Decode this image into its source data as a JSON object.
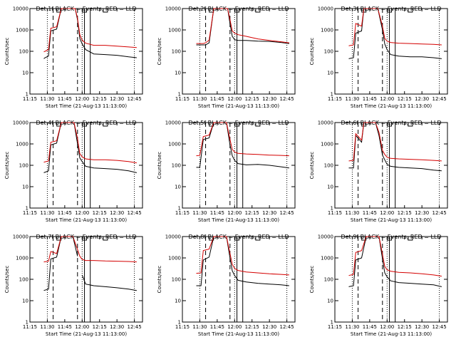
{
  "chart_data": {
    "type": "line",
    "layout": "3x3 grid of panels",
    "yscale": "log",
    "ylim": [
      1,
      10000
    ],
    "y_ticks": [
      "1",
      "10",
      "100",
      "1000",
      "10000"
    ],
    "ylabel": "Counts/sec",
    "x_ticks": [
      "11:15",
      "11:30",
      "11:45",
      "12:00",
      "12:15",
      "12:30",
      "12:45"
    ],
    "xlabel": "Start Time (21-Aug-13 11:13:00)",
    "series_colors": {
      "events": "#000000",
      "lld": "#d40000"
    },
    "markers": {
      "dotted_lines": [
        "11:30",
        "12:00",
        "12:45"
      ],
      "dashed_lines": [
        "11:35",
        "11:56"
      ],
      "solid_lines": [
        "12:02",
        "12:07"
      ],
      "top_marks": [
        "11:40",
        "12:02",
        "12:20"
      ]
    },
    "panels": [
      {
        "title": "Det 1f BLACK = Events, RED = LLD",
        "black_x": [
          "11:15",
          "11:27",
          "11:28",
          "11:31",
          "11:33",
          "11:38",
          "11:42",
          "11:50",
          "11:52",
          "11:54",
          "11:56",
          "11:58",
          "12:00",
          "12:03",
          "12:10",
          "12:20",
          "12:30",
          "12:40",
          "12:47"
        ],
        "black": [
          null,
          45,
          50,
          60,
          900,
          1100,
          10000,
          10000,
          10000,
          10000,
          3000,
          400,
          220,
          120,
          75,
          70,
          65,
          55,
          50
        ],
        "red_x": [
          "11:15",
          "11:27",
          "11:28",
          "11:31",
          "11:33",
          "11:38",
          "11:42",
          "11:50",
          "11:52",
          "11:54",
          "11:56",
          "11:58",
          "12:00",
          "12:03",
          "12:10",
          "12:20",
          "12:30",
          "12:40",
          "12:47"
        ],
        "red": [
          null,
          95,
          100,
          120,
          1200,
          1400,
          10000,
          10000,
          10000,
          10000,
          3500,
          600,
          330,
          240,
          190,
          190,
          175,
          160,
          150
        ]
      },
      {
        "title": "Det 2f BLACK = Events, RED = LLD",
        "black_x": [
          "11:15",
          "11:27",
          "11:29",
          "11:33",
          "11:35",
          "11:38",
          "11:42",
          "11:50",
          "11:52",
          "11:54",
          "11:56",
          "11:58",
          "12:00",
          "12:03",
          "12:10",
          "12:20",
          "12:30",
          "12:40",
          "12:47"
        ],
        "black": [
          null,
          200,
          200,
          200,
          200,
          250,
          10000,
          10000,
          10000,
          10000,
          2000,
          500,
          350,
          320,
          320,
          300,
          290,
          260,
          230
        ],
        "red_x": [
          "11:15",
          "11:27",
          "11:29",
          "11:33",
          "11:35",
          "11:38",
          "11:42",
          "11:50",
          "11:52",
          "11:54",
          "11:56",
          "11:58",
          "12:00",
          "12:03",
          "12:10",
          "12:20",
          "12:30",
          "12:40",
          "12:47"
        ],
        "red": [
          null,
          230,
          230,
          230,
          250,
          330,
          10000,
          10000,
          10000,
          10000,
          3000,
          900,
          700,
          600,
          500,
          380,
          320,
          280,
          250
        ]
      },
      {
        "title": "Det 3f BLACK = Events, RED = LLD",
        "black_x": [
          "11:15",
          "11:27",
          "11:31",
          "11:33",
          "11:38",
          "11:40",
          "11:45",
          "11:50",
          "11:52",
          "11:56",
          "11:58",
          "12:00",
          "12:03",
          "12:10",
          "12:20",
          "12:30",
          "12:40",
          "12:47"
        ],
        "black": [
          null,
          45,
          50,
          700,
          900,
          10000,
          10000,
          10000,
          10000,
          1000,
          220,
          120,
          70,
          60,
          55,
          55,
          50,
          45
        ],
        "red_x": [
          "11:15",
          "11:27",
          "11:31",
          "11:33",
          "11:38",
          "11:40",
          "11:45",
          "11:50",
          "11:52",
          "11:56",
          "11:58",
          "12:00",
          "12:03",
          "12:10",
          "12:20",
          "12:30",
          "12:40",
          "12:47"
        ],
        "red": [
          null,
          180,
          200,
          2000,
          1500,
          10000,
          10000,
          10000,
          10000,
          1500,
          400,
          300,
          260,
          240,
          230,
          220,
          210,
          200
        ]
      },
      {
        "title": "Det 4f BLACK = Events, RED = LLD",
        "black_x": [
          "11:15",
          "11:27",
          "11:31",
          "11:33",
          "11:38",
          "11:42",
          "11:50",
          "11:53",
          "11:56",
          "11:58",
          "12:00",
          "12:03",
          "12:10",
          "12:20",
          "12:30",
          "12:40",
          "12:47"
        ],
        "black": [
          null,
          45,
          55,
          900,
          1100,
          10000,
          10000,
          10000,
          1000,
          220,
          150,
          90,
          75,
          70,
          65,
          55,
          45
        ],
        "red_x": [
          "11:15",
          "11:27",
          "11:31",
          "11:33",
          "11:38",
          "11:42",
          "11:50",
          "11:53",
          "11:56",
          "11:58",
          "12:00",
          "12:03",
          "12:10",
          "12:20",
          "12:30",
          "12:40",
          "12:47"
        ],
        "red": [
          null,
          140,
          160,
          1200,
          1400,
          10000,
          10000,
          10000,
          1800,
          350,
          250,
          200,
          180,
          180,
          170,
          150,
          130
        ]
      },
      {
        "title": "Det 5f BLACK = Events, RED = LLD",
        "black_x": [
          "11:15",
          "11:27",
          "11:30",
          "11:33",
          "11:38",
          "11:42",
          "11:50",
          "11:53",
          "11:56",
          "11:58",
          "12:00",
          "12:03",
          "12:10",
          "12:20",
          "12:30",
          "12:40",
          "12:47"
        ],
        "black": [
          null,
          80,
          80,
          1600,
          1900,
          10000,
          10000,
          10000,
          900,
          280,
          170,
          120,
          105,
          110,
          100,
          85,
          75
        ],
        "red_x": [
          "11:15",
          "11:27",
          "11:30",
          "11:33",
          "11:38",
          "11:42",
          "11:50",
          "11:53",
          "11:56",
          "11:58",
          "12:00",
          "12:03",
          "12:10",
          "12:20",
          "12:30",
          "12:40",
          "12:47"
        ],
        "red": [
          null,
          280,
          290,
          2200,
          2600,
          10000,
          10000,
          10000,
          1600,
          550,
          420,
          360,
          340,
          320,
          300,
          290,
          280
        ]
      },
      {
        "title": "Det 6f BLACK = Events, RED = LLD",
        "black_x": [
          "11:15",
          "11:27",
          "11:31",
          "11:33",
          "11:38",
          "11:40",
          "11:48",
          "11:50",
          "11:53",
          "11:56",
          "11:58",
          "12:00",
          "12:03",
          "12:10",
          "12:20",
          "12:30",
          "12:40",
          "12:47"
        ],
        "black": [
          null,
          75,
          75,
          2500,
          1200,
          10000,
          10000,
          10000,
          2500,
          300,
          180,
          110,
          90,
          80,
          75,
          70,
          60,
          55
        ],
        "red_x": [
          "11:15",
          "11:27",
          "11:31",
          "11:33",
          "11:38",
          "11:40",
          "11:48",
          "11:50",
          "11:53",
          "11:56",
          "11:58",
          "12:00",
          "12:03",
          "12:10",
          "12:20",
          "12:30",
          "12:40",
          "12:47"
        ],
        "red": [
          null,
          160,
          170,
          3000,
          1500,
          10000,
          10000,
          10000,
          3500,
          500,
          320,
          240,
          210,
          200,
          190,
          180,
          170,
          160
        ]
      },
      {
        "title": "Det 7f BLACK = Events, RED = LLD",
        "black_x": [
          "11:15",
          "11:27",
          "11:31",
          "11:33",
          "11:38",
          "11:42",
          "11:50",
          "11:52",
          "11:56",
          "11:58",
          "12:00",
          "12:03",
          "12:10",
          "12:20",
          "12:30",
          "12:40",
          "12:47"
        ],
        "black": [
          null,
          30,
          35,
          900,
          1100,
          10000,
          10000,
          10000,
          1200,
          null,
          160,
          60,
          50,
          45,
          40,
          35,
          30
        ],
        "red_x": [
          "11:15",
          "11:27",
          "11:31",
          "11:33",
          "11:38",
          "11:42",
          "11:50",
          "11:52",
          "11:56",
          "11:58",
          "12:00",
          "12:03",
          "12:10",
          "12:20",
          "12:30",
          "12:40",
          "12:47"
        ],
        "red": [
          null,
          650,
          700,
          2000,
          1600,
          10000,
          10000,
          10000,
          2500,
          1200,
          850,
          760,
          760,
          720,
          700,
          680,
          650
        ]
      },
      {
        "title": "Det 8f BLACK = Events, RED = LLD",
        "black_x": [
          "11:15",
          "11:27",
          "11:31",
          "11:33",
          "11:38",
          "11:42",
          "11:50",
          "11:53",
          "11:56",
          "11:58",
          "12:00",
          "12:03",
          "12:10",
          "12:20",
          "12:30",
          "12:40",
          "12:47"
        ],
        "black": [
          null,
          50,
          50,
          800,
          1100,
          10000,
          10000,
          10000,
          1000,
          250,
          150,
          90,
          75,
          65,
          60,
          55,
          50
        ],
        "red_x": [
          "11:15",
          "11:27",
          "11:31",
          "11:33",
          "11:38",
          "11:42",
          "11:50",
          "11:53",
          "11:56",
          "11:58",
          "12:00",
          "12:03",
          "12:10",
          "12:20",
          "12:30",
          "12:40",
          "12:47"
        ],
        "red": [
          null,
          190,
          200,
          2200,
          2600,
          10000,
          10000,
          10000,
          1600,
          500,
          320,
          260,
          220,
          200,
          180,
          170,
          160
        ]
      },
      {
        "title": "Det 9f BLACK = Events, RED = LLD",
        "black_x": [
          "11:15",
          "11:27",
          "11:31",
          "11:33",
          "11:38",
          "11:42",
          "11:50",
          "11:53",
          "11:56",
          "11:58",
          "12:00",
          "12:03",
          "12:10",
          "12:20",
          "12:30",
          "12:40",
          "12:47"
        ],
        "black": [
          null,
          45,
          50,
          800,
          1000,
          10000,
          10000,
          10000,
          900,
          200,
          130,
          85,
          70,
          65,
          60,
          55,
          45
        ],
        "red_x": [
          "11:15",
          "11:27",
          "11:31",
          "11:33",
          "11:38",
          "11:42",
          "11:50",
          "11:53",
          "11:56",
          "11:58",
          "12:00",
          "12:03",
          "12:10",
          "12:20",
          "12:30",
          "12:40",
          "12:47"
        ],
        "red": [
          null,
          150,
          170,
          1800,
          2200,
          10000,
          10000,
          10000,
          1500,
          400,
          280,
          240,
          210,
          200,
          180,
          160,
          140
        ]
      }
    ]
  }
}
